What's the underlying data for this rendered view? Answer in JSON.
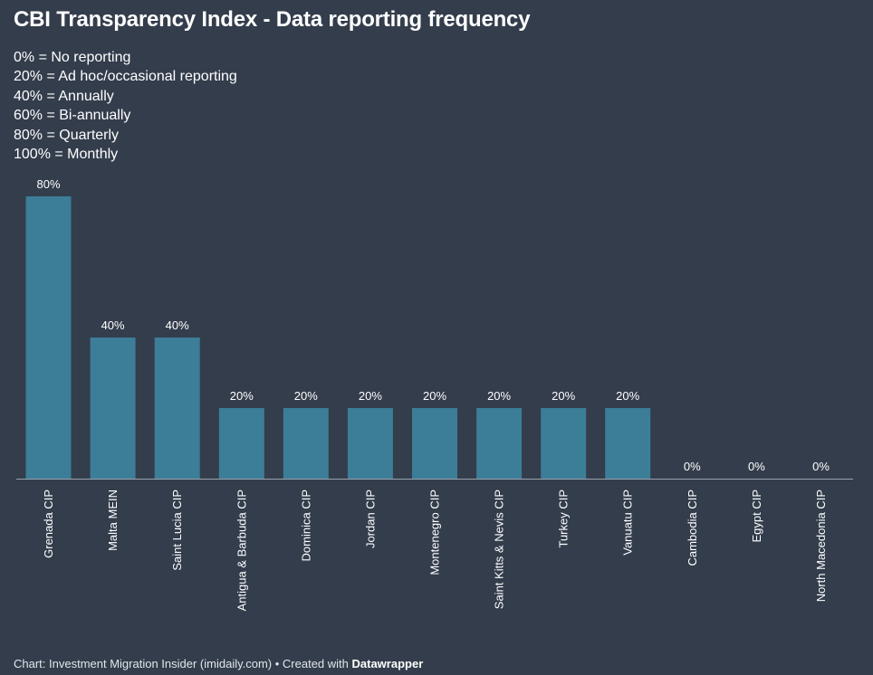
{
  "title": "CBI Transparency Index - Data reporting frequency",
  "legend_lines": [
    "0% = No reporting",
    "20% = Ad hoc/occasional reporting",
    "40% = Annually",
    "60% = Bi-annually",
    "80% = Quarterly",
    "100% = Monthly"
  ],
  "footer": {
    "prefix": "Chart: Investment Migration Insider (imidaily.com) • Created with ",
    "brand": "Datawrapper"
  },
  "colors": {
    "background": "#333d4c",
    "bar": "#3c7d98",
    "baseline": "#9aa3ad"
  },
  "chart_data": {
    "type": "bar",
    "title": "CBI Transparency Index - Data reporting frequency",
    "categories": [
      "Grenada CIP",
      "Malta MEIN",
      "Saint Lucia CIP",
      "Antigua & Barbuda CIP",
      "Dominica CIP",
      "Jordan CIP",
      "Montenegro CIP",
      "Saint Kitts & Nevis CIP",
      "Turkey CIP",
      "Vanuatu CIP",
      "Cambodia CIP",
      "Egypt CIP",
      "North Macedonia CIP"
    ],
    "values": [
      80,
      40,
      40,
      20,
      20,
      20,
      20,
      20,
      20,
      20,
      0,
      0,
      0
    ],
    "value_labels": [
      "80%",
      "40%",
      "40%",
      "20%",
      "20%",
      "20%",
      "20%",
      "20%",
      "20%",
      "20%",
      "0%",
      "0%",
      "0%"
    ],
    "unit": "%",
    "ylim": [
      0,
      80
    ],
    "grid": false,
    "xlabel": "",
    "ylabel": ""
  }
}
